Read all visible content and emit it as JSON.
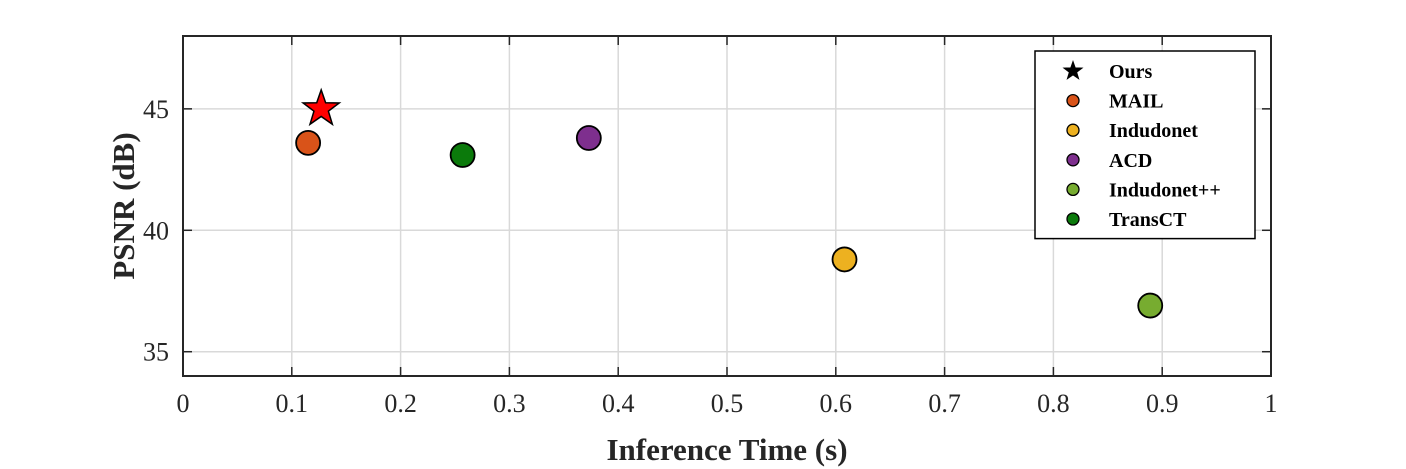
{
  "chart_data": {
    "type": "scatter",
    "title": "",
    "xlabel": "Inference Time (s)",
    "ylabel": "PSNR (dB)",
    "xlim": [
      0,
      1
    ],
    "ylim": [
      34,
      48
    ],
    "xticks": [
      0,
      0.1,
      0.2,
      0.3,
      0.4,
      0.5,
      0.6,
      0.7,
      0.8,
      0.9,
      1
    ],
    "xtick_labels": [
      "0",
      "0.1",
      "0.2",
      "0.3",
      "0.4",
      "0.5",
      "0.6",
      "0.7",
      "0.8",
      "0.9",
      "1"
    ],
    "yticks": [
      35,
      40,
      45
    ],
    "ytick_labels": [
      "35",
      "40",
      "45"
    ],
    "grid": true,
    "legend_position": "top-right",
    "series": [
      {
        "name": "Ours",
        "x": 0.127,
        "y": 45.0,
        "color": "#ff0000",
        "marker": "star",
        "legend_color": "#000000"
      },
      {
        "name": "MAIL",
        "x": 0.115,
        "y": 43.6,
        "color": "#d95319",
        "marker": "circle"
      },
      {
        "name": "Indudonet",
        "x": 0.608,
        "y": 38.8,
        "color": "#edb120",
        "marker": "circle"
      },
      {
        "name": "ACD",
        "x": 0.373,
        "y": 43.8,
        "color": "#7e2f8e",
        "marker": "circle"
      },
      {
        "name": "Indudonet++",
        "x": 0.889,
        "y": 36.9,
        "color": "#77ac30",
        "marker": "circle"
      },
      {
        "name": "TransCT",
        "x": 0.257,
        "y": 43.1,
        "color": "#0b7a0b",
        "marker": "circle"
      }
    ]
  }
}
